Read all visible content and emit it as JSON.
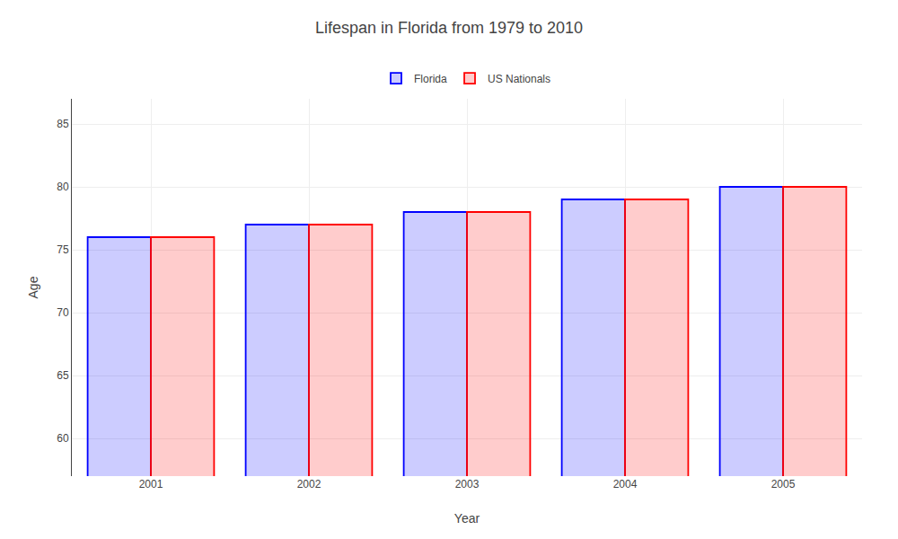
{
  "chart_data": {
    "type": "bar",
    "title": "Lifespan in Florida from 1979 to 2010",
    "xlabel": "Year",
    "ylabel": "Age",
    "categories": [
      "2001",
      "2002",
      "2003",
      "2004",
      "2005"
    ],
    "series": [
      {
        "name": "Florida",
        "color": "#0000ff",
        "values": [
          76,
          77,
          78,
          79,
          80
        ]
      },
      {
        "name": "US Nationals",
        "color": "#ff0000",
        "values": [
          76,
          77,
          78,
          79,
          80
        ]
      }
    ],
    "ylim": [
      57,
      87
    ],
    "yticks": [
      60,
      65,
      70,
      75,
      80,
      85
    ],
    "grid": true,
    "legend": "top"
  }
}
